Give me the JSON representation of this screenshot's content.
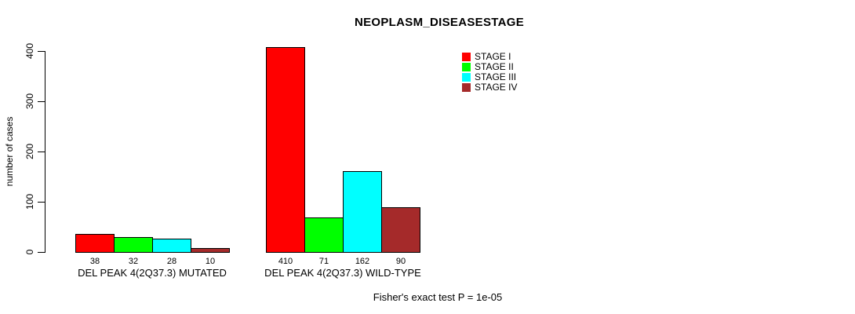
{
  "chart_data": {
    "type": "bar",
    "title": "NEOPLASM_DISEASESTAGE",
    "ylabel": "number of cases",
    "ylim": [
      0,
      400
    ],
    "yticks": [
      0,
      100,
      200,
      300,
      400
    ],
    "series": [
      "STAGE I",
      "STAGE II",
      "STAGE III",
      "STAGE IV"
    ],
    "colors": [
      "#FF0000",
      "#00FF00",
      "#00FFFF",
      "#A52A2A"
    ],
    "groups": [
      {
        "label": "DEL PEAK 4(2Q37.3) MUTATED",
        "values": [
          38,
          32,
          28,
          10
        ]
      },
      {
        "label": "DEL PEAK 4(2Q37.3) WILD-TYPE",
        "values": [
          410,
          71,
          162,
          90
        ]
      }
    ],
    "bar_value_labels_shown": true,
    "grid": false,
    "legend_position": "top-right-inside",
    "annotation": "Fisher's exact test P = 1e-05"
  }
}
